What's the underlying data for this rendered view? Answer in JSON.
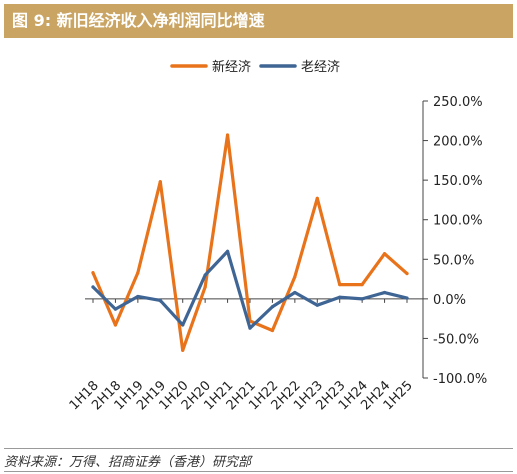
{
  "header": {
    "title": "图 9:  新旧经济收入净利润同比增速"
  },
  "source": "资料来源：万得、招商证券（香港）研究部",
  "colors": {
    "header_bg": "#c9a463",
    "new_economy": "#e8731a",
    "old_economy": "#3f6594",
    "axis": "#444444"
  },
  "chart_data": {
    "type": "line",
    "categories": [
      "1H18",
      "2H18",
      "1H19",
      "2H19",
      "1H20",
      "2H20",
      "1H21",
      "2H21",
      "1H22",
      "2H22",
      "1H23",
      "2H23",
      "1H24",
      "2H24",
      "1H25"
    ],
    "series": [
      {
        "name": "新经济",
        "color": "#e8731a",
        "values": [
          0.33,
          -0.33,
          0.33,
          1.48,
          -0.65,
          0.15,
          2.07,
          -0.28,
          -0.4,
          0.28,
          1.27,
          0.18,
          0.18,
          0.57,
          0.32
        ]
      },
      {
        "name": "老经济",
        "color": "#3f6594",
        "values": [
          0.15,
          -0.13,
          0.03,
          -0.02,
          -0.33,
          0.3,
          0.6,
          -0.37,
          -0.1,
          0.08,
          -0.08,
          0.02,
          0.0,
          0.08,
          0.01
        ]
      }
    ],
    "y_axis": {
      "position": "right",
      "min": -1.0,
      "max": 2.5,
      "step": 0.5,
      "tick_labels": [
        "-100.0%",
        "-50.0%",
        "0.0%",
        "50.0%",
        "100.0%",
        "150.0%",
        "200.0%",
        "250.0%"
      ]
    },
    "grid": false,
    "legend": "top"
  }
}
